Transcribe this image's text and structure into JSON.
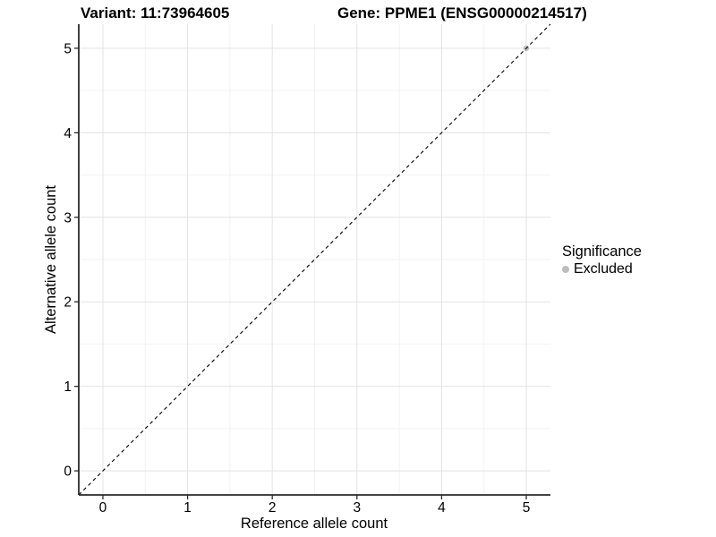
{
  "header": {
    "variant_title": "Variant: 11:73964605",
    "gene_title": "Gene: PPME1 (ENSG00000214517)"
  },
  "legend": {
    "title": "Significance",
    "items": [
      {
        "label": "Excluded",
        "color": "#bdbdbd"
      }
    ]
  },
  "chart_data": {
    "type": "scatter",
    "title": "Variant: 11:73964605 — Gene: PPME1 (ENSG00000214517)",
    "xlabel": "Reference allele count",
    "ylabel": "Alternative allele count",
    "xlim": [
      -0.285,
      5.285
    ],
    "ylim": [
      -0.285,
      5.285
    ],
    "x_ticks": [
      0,
      1,
      2,
      3,
      4,
      5
    ],
    "x_tick_labels": [
      "0",
      "1",
      "2",
      "3",
      "4",
      "5"
    ],
    "y_ticks": [
      0,
      1,
      2,
      3,
      4,
      5
    ],
    "y_tick_labels": [
      "0",
      "1",
      "2",
      "3",
      "4",
      "5"
    ],
    "x_minor_ticks": [
      0.5,
      1.5,
      2.5,
      3.5,
      4.5
    ],
    "y_minor_ticks": [
      0.5,
      1.5,
      2.5,
      3.5,
      4.5
    ],
    "grid": true,
    "legend_position": "right",
    "series": [
      {
        "name": "Excluded",
        "points": [
          {
            "x": 5,
            "y": 5
          }
        ]
      }
    ],
    "abline": {
      "slope": 1,
      "intercept": 0,
      "linetype": "dashed",
      "color": "#000000"
    },
    "style": {
      "point_color": "#bdbdbd",
      "point_radius": 3.2,
      "major_grid_color": "#e3e3e3",
      "minor_grid_color": "#f2f2f2",
      "axis_color": "#2a2a2a"
    }
  }
}
